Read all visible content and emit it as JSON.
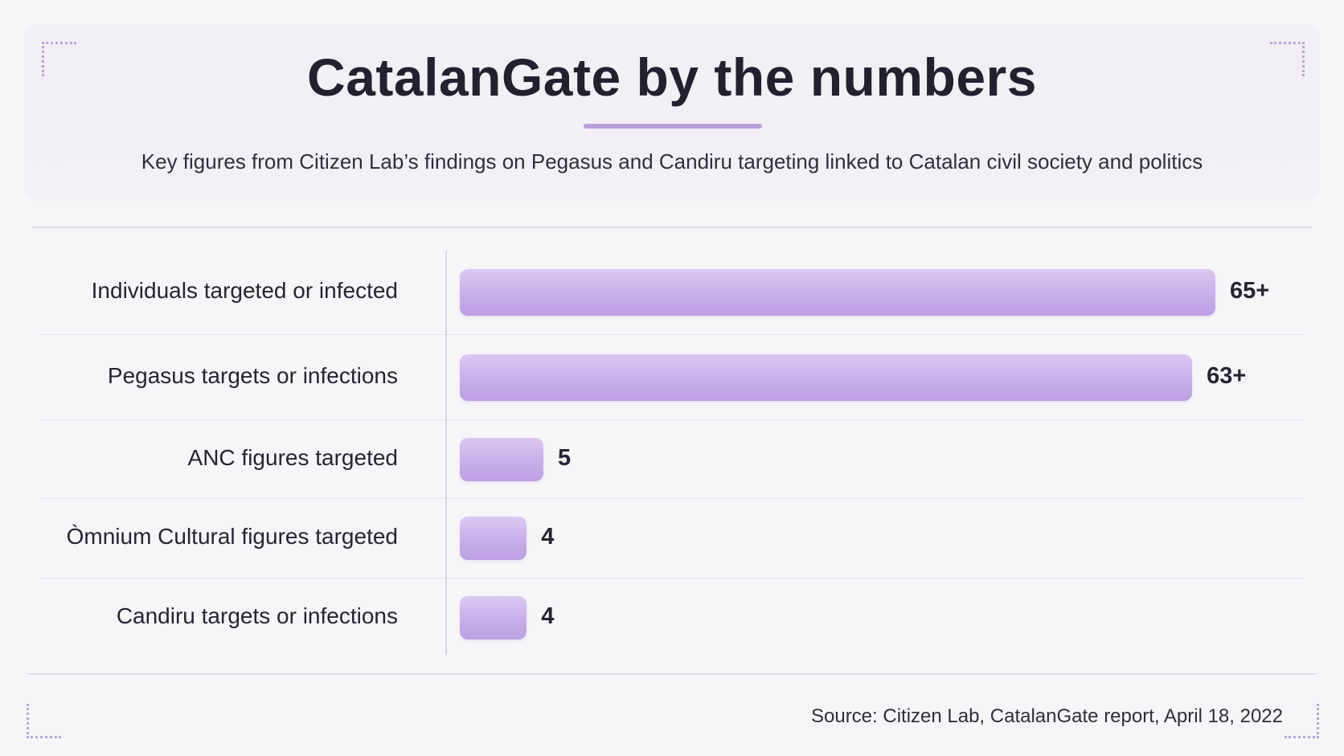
{
  "header": {
    "title": "CatalanGate by the numbers",
    "subtitle": "Key figures from Citizen Lab’s findings on Pegasus and Candiru targeting linked to Catalan civil society and politics"
  },
  "footer": {
    "source": "Source: Citizen Lab, CatalanGate report, April 18, 2022"
  },
  "chart_data": {
    "type": "bar",
    "orientation": "horizontal",
    "categories": [
      "Individuals targeted or infected",
      "Pegasus targets or infections",
      "ANC figures targeted",
      "Òmnium Cultural figures targeted",
      "Candiru targets or infections"
    ],
    "values": [
      65,
      63,
      5,
      4,
      4
    ],
    "value_labels": [
      "65+",
      "63+",
      "5",
      "4",
      "4"
    ],
    "title": "CatalanGate by the numbers",
    "xlabel": "",
    "ylabel": "",
    "grid": false,
    "legend": "none",
    "bar_color": "#c8aeea"
  }
}
